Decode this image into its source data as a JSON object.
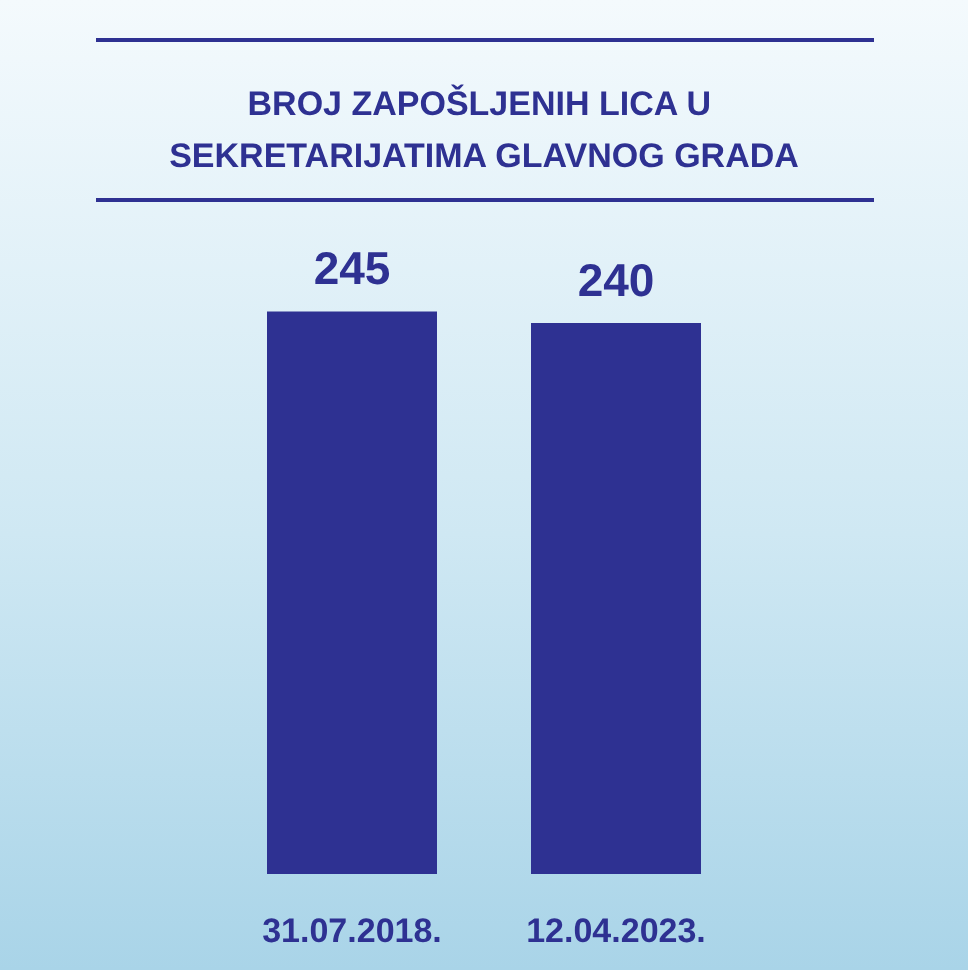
{
  "chart_data": {
    "type": "bar",
    "title": "BROJ ZAPOŠLJENIH LICA U SEKRETARIJATIMA GLAVNOG GRADA",
    "categories": [
      "31.07.2018.",
      "12.04.2023."
    ],
    "values": [
      245,
      240
    ],
    "color": "#2e3192",
    "data_labels": true
  }
}
